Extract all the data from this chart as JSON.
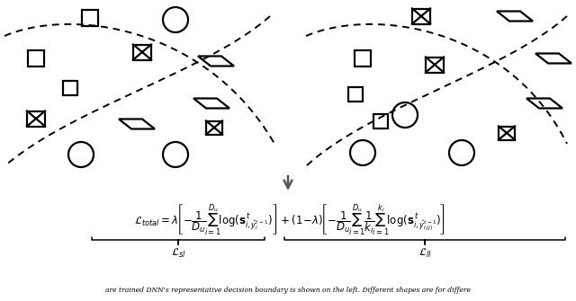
{
  "bg_color": "#ffffff",
  "fig_width": 6.4,
  "fig_height": 3.35,
  "dpi": 100,
  "caption": "are trained DNN's representative decision boundary is shown on the left. Different shapes are for differe"
}
